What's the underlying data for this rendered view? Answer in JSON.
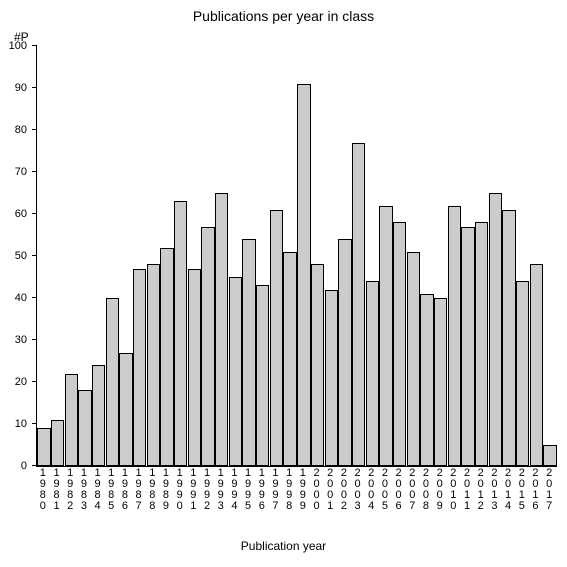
{
  "chart": {
    "type": "bar",
    "title": "Publications per year in class",
    "title_fontsize": 14,
    "ylabel": "#P",
    "xaxis_title": "Publication year",
    "label_fontsize": 12,
    "tick_fontsize": 11,
    "background_color": "#ffffff",
    "axis_color": "#000000",
    "bar_color": "#cccccc",
    "bar_border_color": "#000000",
    "ylim": [
      0,
      100
    ],
    "ytick_step": 10,
    "bar_width": 0.98,
    "categories": [
      "1980",
      "1981",
      "1982",
      "1983",
      "1984",
      "1985",
      "1986",
      "1987",
      "1988",
      "1989",
      "1990",
      "1991",
      "1992",
      "1993",
      "1994",
      "1995",
      "1996",
      "1997",
      "1998",
      "1999",
      "2000",
      "2001",
      "2002",
      "2003",
      "2004",
      "2005",
      "2006",
      "2007",
      "2008",
      "2009",
      "2010",
      "2011",
      "2012",
      "2013",
      "2014",
      "2015",
      "2016",
      "2017"
    ],
    "values": [
      9,
      11,
      22,
      18,
      24,
      40,
      27,
      47,
      48,
      52,
      63,
      47,
      57,
      65,
      45,
      54,
      43,
      61,
      51,
      91,
      48,
      42,
      54,
      77,
      44,
      62,
      58,
      51,
      41,
      40,
      62,
      57,
      58,
      65,
      61,
      44,
      48,
      5
    ]
  }
}
